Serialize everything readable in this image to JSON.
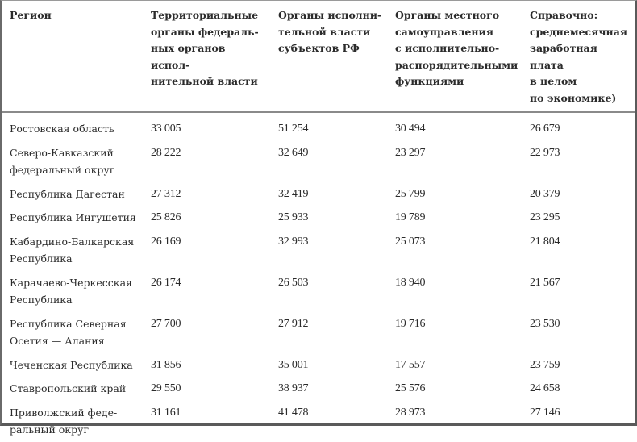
{
  "table": {
    "headers": [
      "Регион",
      "Территориальные органы федераль-ных органов испол-нительной власти",
      "Органы исполни-тельной власти субъектов РФ",
      "Органы местного самоуправления с исполнительно-распорядительными функциями",
      "Справочно: среднемесячная заработная плата в целом по экономике)"
    ],
    "header_lines": [
      [
        "Регион"
      ],
      [
        "Территориальные",
        "органы федераль-",
        "ных органов испол-",
        "нительной власти"
      ],
      [
        "Органы исполни-",
        "тельной власти",
        "субъектов РФ"
      ],
      [
        "Органы местного",
        "самоуправления",
        "с исполнительно-",
        "распорядительными",
        "функциями"
      ],
      [
        "Справочно:",
        "среднемесячная",
        "заработная плата",
        "в целом",
        "по экономике)"
      ]
    ],
    "rows": [
      {
        "region_lines": [
          "Ростовская область"
        ],
        "federal": "33 005",
        "subject": "51 254",
        "local": "30 494",
        "avg_salary": "26 679"
      },
      {
        "region_lines": [
          "Северо-Кавказский",
          "федеральный округ"
        ],
        "federal": "28 222",
        "subject": "32 649",
        "local": "23 297",
        "avg_salary": "22 973"
      },
      {
        "region_lines": [
          "Республика Дагестан"
        ],
        "federal": "27 312",
        "subject": "32 419",
        "local": "25 799",
        "avg_salary": "20 379"
      },
      {
        "region_lines": [
          "Республика Ингушетия"
        ],
        "federal": "25 826",
        "subject": "25 933",
        "local": "19 789",
        "avg_salary": "23 295"
      },
      {
        "region_lines": [
          "Кабардино-Балкарская",
          "Республика"
        ],
        "federal": "26 169",
        "subject": "32 993",
        "local": "25 073",
        "avg_salary": "21 804"
      },
      {
        "region_lines": [
          "Карачаево-Черкесская",
          "Республика"
        ],
        "federal": "26 174",
        "subject": "26 503",
        "local": "18 940",
        "avg_salary": "21 567"
      },
      {
        "region_lines": [
          "Республика Северная",
          "Осетия — Алания"
        ],
        "federal": "27 700",
        "subject": "27 912",
        "local": "19 716",
        "avg_salary": "23 530"
      },
      {
        "region_lines": [
          "Чеченская Республика"
        ],
        "federal": "31 856",
        "subject": "35 001",
        "local": "17 557",
        "avg_salary": "23 759"
      },
      {
        "region_lines": [
          "Ставропольский край"
        ],
        "federal": "29 550",
        "subject": "38 937",
        "local": "25 576",
        "avg_salary": "24 658"
      },
      {
        "region_lines": [
          "Приволжский феде-",
          "ральный округ"
        ],
        "federal": "31 161",
        "subject": "41 478",
        "local": "28 973",
        "avg_salary": "27 146"
      }
    ]
  },
  "colors": {
    "text": "#2b2b2b",
    "border": "#6a6a6a",
    "background": "#ffffff"
  }
}
